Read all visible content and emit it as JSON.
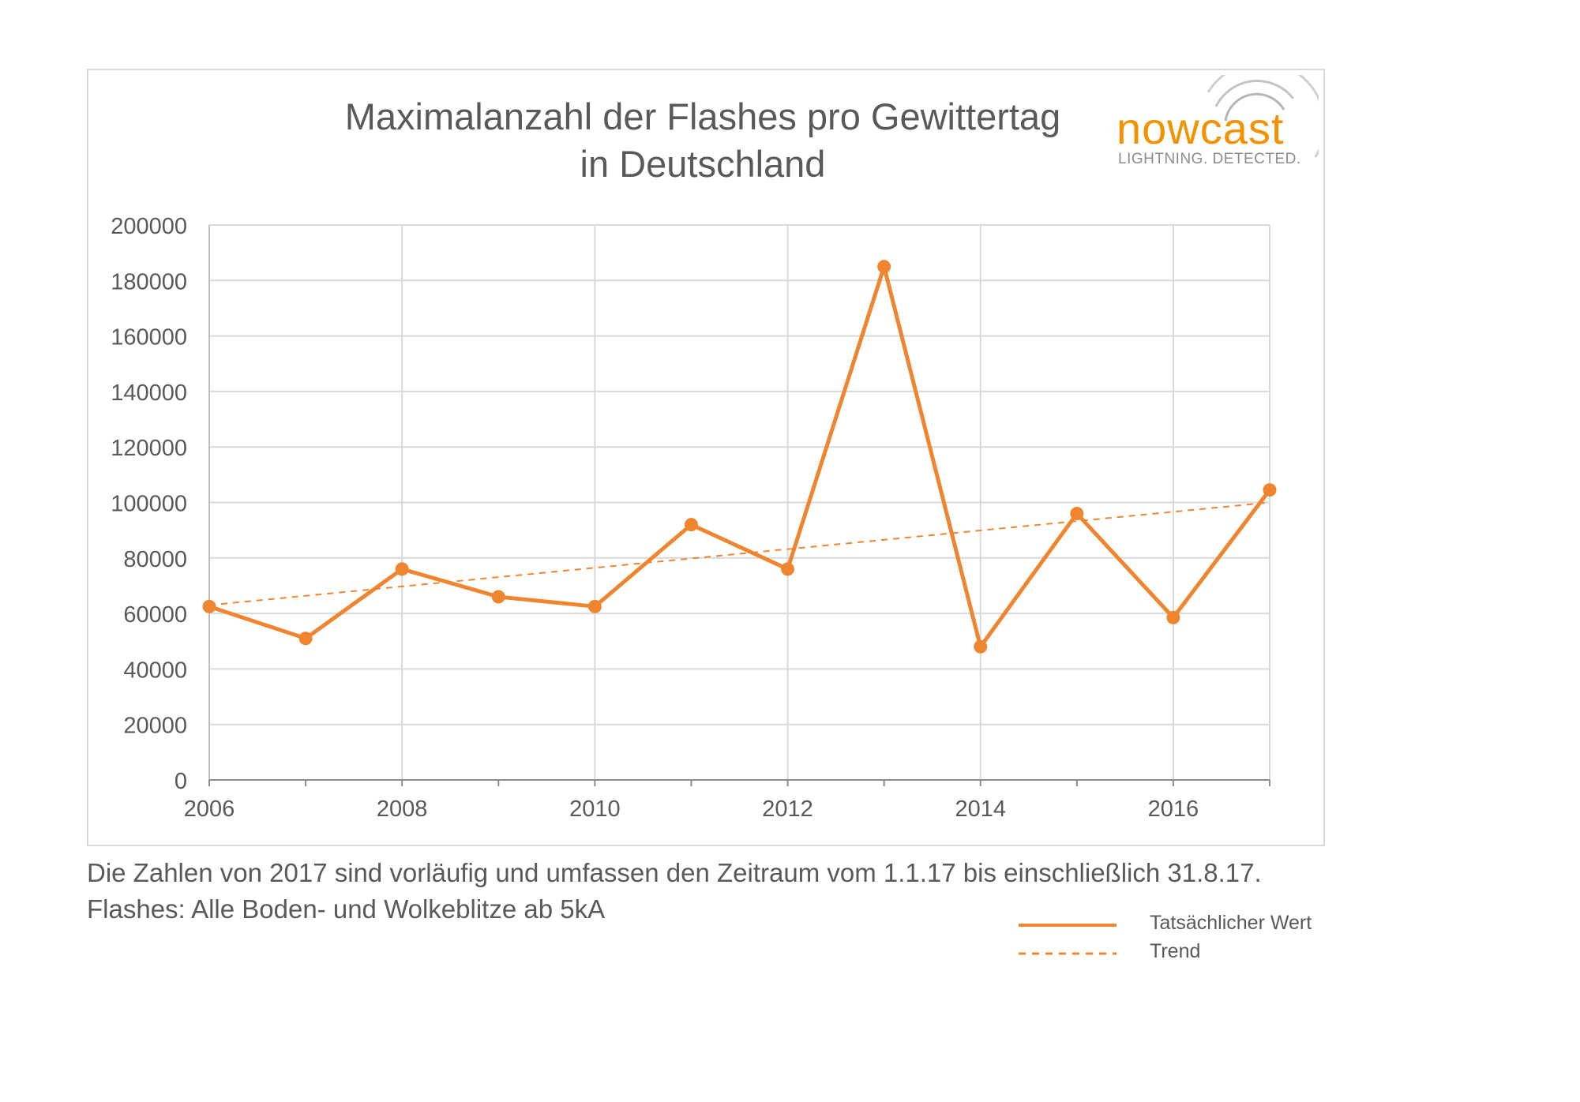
{
  "chart_data": {
    "type": "line",
    "title": [
      "Maximalanzahl der Flashes pro Gewittertag",
      "in Deutschland"
    ],
    "x": [
      2006,
      2007,
      2008,
      2009,
      2010,
      2011,
      2012,
      2013,
      2014,
      2015,
      2016,
      2017
    ],
    "x_ticks": [
      "2006",
      "2008",
      "2010",
      "2012",
      "2014",
      "2016"
    ],
    "y_ticks": [
      "0",
      "20000",
      "40000",
      "60000",
      "80000",
      "100000",
      "120000",
      "140000",
      "160000",
      "180000",
      "200000"
    ],
    "xlim": [
      2006,
      2017
    ],
    "ylim": [
      0,
      200000
    ],
    "grid": true,
    "legend_position": "bottom-right",
    "series": [
      {
        "name": "Tatsächlicher Wert",
        "style": "solid",
        "values": [
          62500,
          51000,
          76000,
          66000,
          62500,
          92000,
          76000,
          185000,
          48000,
          96000,
          58500,
          104500
        ]
      },
      {
        "name": "Trend",
        "style": "dashed",
        "values": [
          63000,
          100000
        ],
        "x": [
          2006,
          2017
        ]
      }
    ]
  },
  "colors": {
    "accent": "#f08530",
    "grid": "#d9d9d9",
    "text": "#595959",
    "logo_orange": "#f39200"
  },
  "logo": {
    "word": "nowcast",
    "tagline": "LIGHTNING. DETECTED."
  },
  "notes": {
    "line1": "Die Zahlen von 2017 sind vorläufig und umfassen den Zeitraum vom 1.1.17 bis einschließlich 31.8.17.",
    "line2": "Flashes: Alle Boden- und Wolkeblitze ab 5kA"
  }
}
